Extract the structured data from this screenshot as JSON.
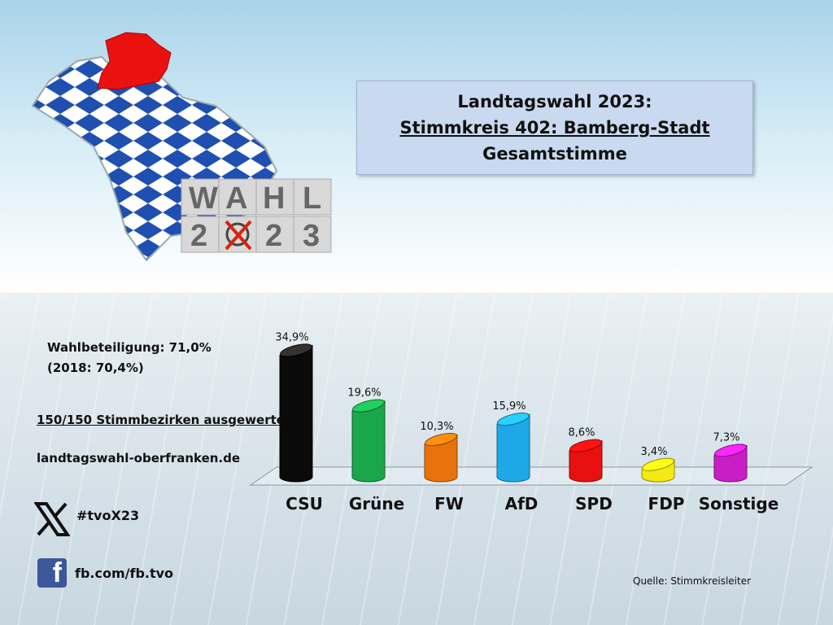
{
  "title": {
    "line1": "Landtagswahl 2023:",
    "line2": "Stimmkreis 402: Bamberg-Stadt",
    "line3": "Gesamtstimme"
  },
  "logo_text": [
    "W",
    "A",
    "H",
    "L",
    "2",
    "2",
    "3"
  ],
  "turnout": {
    "line1": "Wahlbeteiligung: 71,0%",
    "line2": "(2018: 70,4%)"
  },
  "districts": "150/150 Stimmbezirken ausgewertet",
  "website": "landtagswahl-oberfranken.de",
  "social": {
    "x_handle": "#tvoX23",
    "facebook": "fb.com/fb.tvo",
    "x_icon": "x-icon",
    "facebook_icon": "facebook-icon"
  },
  "source": "Quelle: Stimmkreisleiter",
  "chart_data": {
    "type": "bar",
    "categories": [
      "CSU",
      "Grüne",
      "FW",
      "AfD",
      "SPD",
      "FDP",
      "Sonstige"
    ],
    "values": [
      34.9,
      19.6,
      10.3,
      15.9,
      8.6,
      3.4,
      7.3
    ],
    "value_labels": [
      "34,9%",
      "19,6%",
      "10,3%",
      "15,9%",
      "8,6%",
      "3,4%",
      "7,3%"
    ],
    "colors": [
      "#0a0a0a",
      "#1aa64a",
      "#e8730c",
      "#1fa8e8",
      "#e81010",
      "#f2ea10",
      "#c81ec8"
    ],
    "ylim": [
      0,
      35
    ],
    "grid": false,
    "legend": "none"
  }
}
